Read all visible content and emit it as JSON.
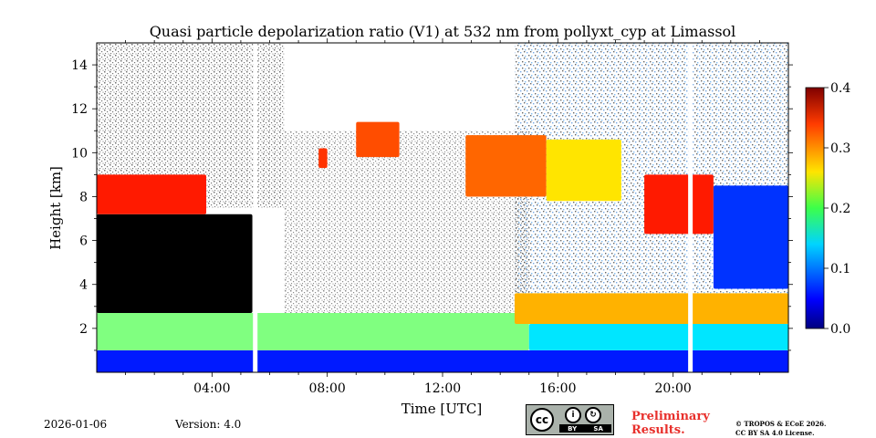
{
  "chart_data": {
    "type": "heatmap",
    "title": "Quasi particle depolarization ratio (V1) at 532 nm from pollyxt_cyp at Limassol",
    "xlabel": "Time [UTC]",
    "ylabel": "Height [km]",
    "xlim": [
      0,
      24
    ],
    "ylim": [
      0,
      15
    ],
    "x_ticks": [
      4,
      8,
      12,
      16,
      20
    ],
    "x_tick_labels": [
      "04:00",
      "08:00",
      "12:00",
      "16:00",
      "20:00"
    ],
    "y_ticks": [
      2,
      4,
      6,
      8,
      10,
      12,
      14
    ],
    "y_tick_labels": [
      "2",
      "4",
      "6",
      "8",
      "10",
      "12",
      "14"
    ],
    "colorbar": {
      "range": [
        0.0,
        0.4
      ],
      "ticks": [
        0.0,
        0.1,
        0.2,
        0.3,
        0.4
      ],
      "tick_labels": [
        "0.0",
        "0.1",
        "0.2",
        "0.3",
        "0.4"
      ],
      "colormap": "jet"
    },
    "data_gaps_hours": [
      5.5,
      20.6
    ],
    "regions": [
      {
        "name": "near-surface low-depol layer",
        "t_start": 0,
        "t_end": 24,
        "h_start": 0.0,
        "h_end": 1.0,
        "value": 0.06
      },
      {
        "name": "boundary layer mixed aerosol",
        "t_start": 0,
        "t_end": 15,
        "h_start": 1.0,
        "h_end": 2.7,
        "value": 0.2
      },
      {
        "name": "boundary layer mixed aerosol",
        "t_start": 15,
        "t_end": 24,
        "h_start": 1.0,
        "h_end": 2.2,
        "value": 0.14
      },
      {
        "name": "dust layer",
        "t_start": 14.5,
        "t_end": 24,
        "h_start": 2.2,
        "h_end": 3.6,
        "value": 0.28
      },
      {
        "name": "low-signal region",
        "t_start": 0,
        "t_end": 5.4,
        "h_start": 2.7,
        "h_end": 7.2,
        "value": null
      },
      {
        "name": "ice cloud",
        "t_start": 0,
        "t_end": 3.8,
        "h_start": 7.2,
        "h_end": 9.0,
        "value": 0.34
      },
      {
        "name": "ice cloud",
        "t_start": 7.7,
        "t_end": 8.0,
        "h_start": 9.3,
        "h_end": 10.2,
        "value": 0.33
      },
      {
        "name": "ice cloud",
        "t_start": 9.0,
        "t_end": 10.5,
        "h_start": 9.8,
        "h_end": 11.4,
        "value": 0.32
      },
      {
        "name": "ice cloud",
        "t_start": 12.8,
        "t_end": 15.6,
        "h_start": 8.0,
        "h_end": 10.8,
        "value": 0.31
      },
      {
        "name": "ice cloud",
        "t_start": 15.6,
        "t_end": 18.2,
        "h_start": 7.8,
        "h_end": 10.6,
        "value": 0.26
      },
      {
        "name": "ice cloud",
        "t_start": 19.0,
        "t_end": 21.4,
        "h_start": 6.3,
        "h_end": 9.0,
        "value": 0.34
      },
      {
        "name": "low-depol upper cloud",
        "t_start": 21.4,
        "t_end": 24,
        "h_start": 3.8,
        "h_end": 8.5,
        "value": 0.07
      }
    ]
  },
  "footer": {
    "date": "2026-01-06",
    "version": "Version: 4.0",
    "license_badge": {
      "cc": "cc",
      "by": "BY",
      "sa": "SA"
    },
    "preliminary_line1": "Preliminary",
    "preliminary_line2": "Results.",
    "copyright_line1": "© TROPOS & ECoE 2026.",
    "copyright_line2": "CC BY SA 4.0 License."
  }
}
